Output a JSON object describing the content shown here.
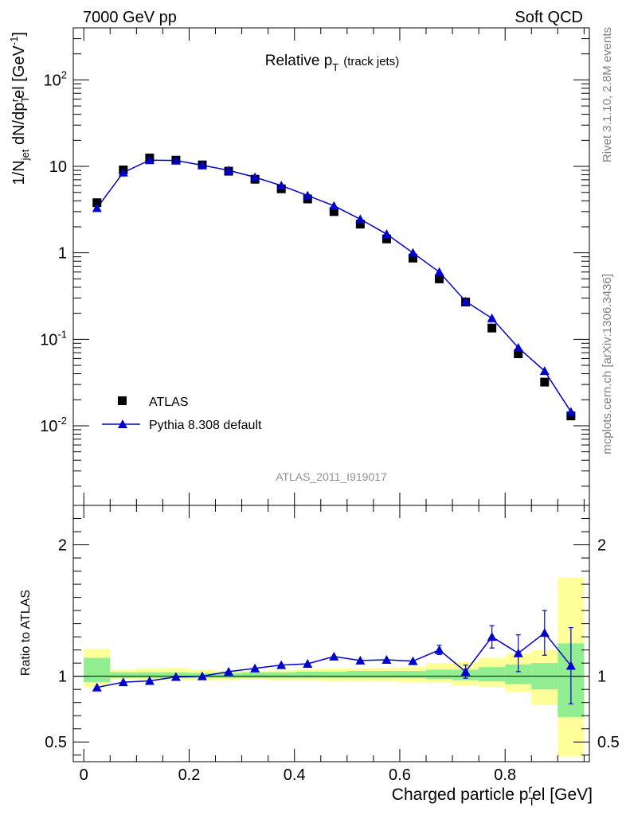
{
  "header": {
    "left_label": "7000 GeV pp",
    "right_label": "Soft QCD"
  },
  "side_labels": {
    "rivet": "Rivet 3.1.10,  2.8M events",
    "mcplots": "mcplots.cern.ch [arXiv:1306.3436]"
  },
  "chart_data": [
    {
      "type": "scatter",
      "panel": "main",
      "title_main": "Relative p",
      "title_sub": "T",
      "title_suffix": "(track jets)",
      "ylabel": "1/N_jet dN/dp_T^rel [GeV^-1]",
      "ylabel_parts": {
        "a": "1/N",
        "b": "jet",
        "c": " dN/dp",
        "d": "T",
        "e": "r",
        "f": "el [GeV",
        "g": "-1",
        "h": "]"
      },
      "yscale": "log",
      "ylim": [
        0.0012,
        400
      ],
      "xlim": [
        -0.02,
        0.96
      ],
      "y_tick_labels": [
        {
          "value": 0.01,
          "base": "10",
          "exp": "-2"
        },
        {
          "value": 0.1,
          "base": "10",
          "exp": "-1"
        },
        {
          "value": 1,
          "base": "1",
          "exp": ""
        },
        {
          "value": 10,
          "base": "10",
          "exp": ""
        },
        {
          "value": 100,
          "base": "10",
          "exp": "2"
        }
      ],
      "watermark": "ATLAS_2011_I919017",
      "legend_position": "lower-left",
      "series": [
        {
          "name": "ATLAS",
          "marker": "square",
          "color": "#000000",
          "x": [
            0.025,
            0.075,
            0.125,
            0.175,
            0.225,
            0.275,
            0.325,
            0.375,
            0.425,
            0.475,
            0.525,
            0.575,
            0.625,
            0.675,
            0.725,
            0.775,
            0.825,
            0.875,
            0.925
          ],
          "y": [
            3.8,
            9.1,
            12.5,
            11.8,
            10.4,
            8.8,
            7.1,
            5.5,
            4.2,
            3.0,
            2.15,
            1.45,
            0.87,
            0.5,
            0.27,
            0.135,
            0.068,
            0.032,
            0.013
          ]
        },
        {
          "name": "Pythia 8.308 default",
          "marker": "triangle",
          "color": "#0000cc",
          "x": [
            0.025,
            0.075,
            0.125,
            0.175,
            0.225,
            0.275,
            0.325,
            0.375,
            0.425,
            0.475,
            0.525,
            0.575,
            0.625,
            0.675,
            0.725,
            0.775,
            0.825,
            0.875,
            0.925
          ],
          "y": [
            3.3,
            8.5,
            11.8,
            11.7,
            10.3,
            9.0,
            7.5,
            6.0,
            4.6,
            3.5,
            2.45,
            1.65,
            1.0,
            0.6,
            0.275,
            0.175,
            0.08,
            0.043,
            0.0145
          ]
        }
      ]
    },
    {
      "type": "scatter",
      "panel": "ratio",
      "ylabel": "Ratio to ATLAS",
      "ylim": [
        0.35,
        2.3
      ],
      "xlim": [
        -0.02,
        0.96
      ],
      "xlabel_parts": {
        "a": "Charged particle p",
        "b": "T",
        "c": "r",
        "d": "el [GeV]"
      },
      "x_tick_labels": [
        "0",
        "0.2",
        "0.4",
        "0.6",
        "0.8"
      ],
      "x_tick_values": [
        0,
        0.2,
        0.4,
        0.6,
        0.8
      ],
      "y_tick_labels": [
        "0.5",
        "1",
        "2"
      ],
      "y_tick_values": [
        0.5,
        1,
        2
      ],
      "bands": {
        "edges": [
          0,
          0.05,
          0.1,
          0.15,
          0.2,
          0.25,
          0.3,
          0.35,
          0.4,
          0.45,
          0.5,
          0.55,
          0.6,
          0.65,
          0.7,
          0.75,
          0.8,
          0.85,
          0.9,
          0.95
        ],
        "inner_color": "#90ee90",
        "outer_color": "#ffff99",
        "inner_lo": [
          0.955,
          0.985,
          0.985,
          0.985,
          0.985,
          0.985,
          0.985,
          0.985,
          0.985,
          0.985,
          0.985,
          0.985,
          0.985,
          0.98,
          0.97,
          0.96,
          0.94,
          0.9,
          0.69
        ],
        "inner_hi": [
          1.14,
          1.03,
          1.03,
          1.03,
          1.025,
          1.025,
          1.03,
          1.03,
          1.035,
          1.035,
          1.04,
          1.04,
          1.04,
          1.05,
          1.05,
          1.07,
          1.09,
          1.1,
          1.25
        ],
        "outer_lo": [
          0.915,
          0.975,
          0.975,
          0.97,
          0.97,
          0.97,
          0.975,
          0.97,
          0.97,
          0.96,
          0.96,
          0.96,
          0.955,
          0.95,
          0.93,
          0.92,
          0.88,
          0.78,
          0.39
        ],
        "outer_hi": [
          1.21,
          1.05,
          1.06,
          1.065,
          1.05,
          1.04,
          1.04,
          1.045,
          1.055,
          1.06,
          1.06,
          1.065,
          1.07,
          1.1,
          1.11,
          1.14,
          1.17,
          1.2,
          1.75
        ]
      },
      "series": [
        {
          "name": "Pythia 8.308 default",
          "marker": "triangle",
          "color": "#0000cc",
          "x": [
            0.025,
            0.075,
            0.125,
            0.175,
            0.225,
            0.275,
            0.325,
            0.375,
            0.425,
            0.475,
            0.525,
            0.575,
            0.625,
            0.675,
            0.725,
            0.775,
            0.825,
            0.875,
            0.925
          ],
          "y": [
            0.915,
            0.955,
            0.965,
            0.995,
            1.0,
            1.035,
            1.06,
            1.085,
            1.095,
            1.15,
            1.12,
            1.125,
            1.115,
            1.2,
            1.035,
            1.3,
            1.175,
            1.33,
            1.08
          ],
          "yerr": [
            0.005,
            0.005,
            0.005,
            0.005,
            0.005,
            0.005,
            0.005,
            0.005,
            0.005,
            0.005,
            0.01,
            0.01,
            0.015,
            0.035,
            0.05,
            0.085,
            0.14,
            0.17,
            0.29
          ]
        }
      ]
    }
  ]
}
